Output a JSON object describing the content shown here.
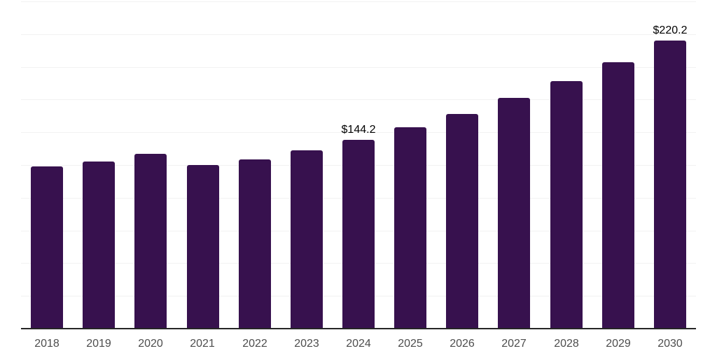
{
  "chart_data": {
    "type": "bar",
    "title": "",
    "xlabel": "",
    "ylabel": "",
    "categories": [
      "2018",
      "2019",
      "2020",
      "2021",
      "2022",
      "2023",
      "2024",
      "2025",
      "2026",
      "2027",
      "2028",
      "2029",
      "2030"
    ],
    "values": [
      124.0,
      127.7,
      133.8,
      125.1,
      129.2,
      136.4,
      144.2,
      153.7,
      164.1,
      176.2,
      189.1,
      203.5,
      220.2
    ],
    "data_labels": [
      "",
      "",
      "",
      "",
      "",
      "",
      "$144.2",
      "",
      "",
      "",
      "",
      "",
      "$220.2"
    ],
    "ylim": [
      0,
      250
    ],
    "grid_step": 25,
    "grid": true,
    "legend": false,
    "colors": {
      "bar": "#37114e",
      "axis_line": "#262626",
      "gridline": "#f2f2f2",
      "tick_label": "#4d4d4d",
      "data_label": "#000000",
      "background": "#ffffff"
    }
  }
}
